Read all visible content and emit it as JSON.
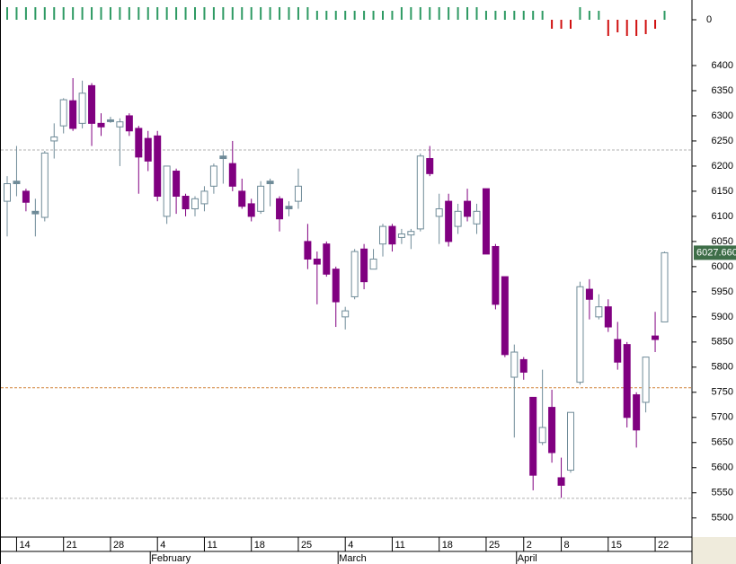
{
  "chart_data": [
    {
      "type": "bar",
      "values": [
        14,
        14,
        14,
        14,
        14,
        14,
        14,
        14,
        14,
        14,
        14,
        14,
        14,
        14,
        14,
        14,
        14,
        14,
        14,
        14,
        14,
        14,
        14,
        14,
        14,
        14,
        14,
        14,
        14,
        14,
        14,
        14,
        14,
        10,
        10,
        10,
        10,
        10,
        10,
        10,
        10,
        10,
        14,
        14,
        14,
        14,
        14,
        14,
        14,
        14,
        14,
        10,
        10,
        10,
        10,
        10,
        10,
        10,
        -10,
        -10,
        -10,
        14,
        10,
        10,
        -18,
        -14,
        -18,
        -18,
        -16,
        -10,
        10
      ],
      "ylim": [
        -20,
        17
      ],
      "yticks": [
        0
      ],
      "up_color": "#2e9a63",
      "down_color": "#d01010"
    },
    {
      "type": "candlestick",
      "categories": [
        null,
        "14",
        null,
        null,
        null,
        null,
        "21",
        null,
        null,
        null,
        null,
        "28",
        null,
        null,
        null,
        null,
        "4",
        null,
        null,
        null,
        null,
        "11",
        null,
        null,
        null,
        null,
        "18",
        null,
        null,
        null,
        null,
        "25",
        null,
        null,
        null,
        null,
        "4",
        null,
        null,
        null,
        null,
        "11",
        null,
        null,
        null,
        null,
        "18",
        null,
        null,
        null,
        null,
        "25",
        null,
        null,
        null,
        "2",
        null,
        null,
        null,
        "8",
        null,
        null,
        null,
        null,
        "15",
        null,
        null,
        null,
        null,
        "22",
        null
      ],
      "months": [
        null,
        null,
        null,
        null,
        null,
        null,
        null,
        null,
        null,
        null,
        null,
        null,
        null,
        null,
        null,
        null,
        "February",
        null,
        null,
        null,
        null,
        null,
        null,
        null,
        null,
        null,
        null,
        null,
        null,
        null,
        null,
        null,
        null,
        null,
        null,
        null,
        "March",
        null,
        null,
        null,
        null,
        null,
        null,
        null,
        null,
        null,
        null,
        null,
        null,
        null,
        null,
        null,
        null,
        null,
        null,
        "April",
        null,
        null,
        null,
        null,
        null,
        null,
        null,
        null,
        null,
        null,
        null,
        null,
        null,
        null,
        null
      ],
      "open": [
        6130,
        6165,
        6150,
        6110,
        6098,
        6250,
        6280,
        6330,
        6285,
        6360,
        6285,
        6292,
        6278,
        6300,
        6275,
        6255,
        6260,
        6100,
        6190,
        6140,
        6115,
        6125,
        6160,
        6215,
        6205,
        6150,
        6125,
        6110,
        6165,
        6135,
        6115,
        6130,
        6050,
        6015,
        6045,
        5995,
        5900,
        5940,
        6035,
        5995,
        6045,
        6080,
        6058,
        6063,
        6075,
        6215,
        6100,
        6130,
        6080,
        6130,
        6085,
        6155,
        6040,
        5980,
        5780,
        5815,
        5740,
        5650,
        5720,
        5580,
        5595,
        5770,
        5955,
        5900,
        5920,
        5855,
        5845,
        5745,
        5730,
        5862,
        5890
      ],
      "high": [
        6180,
        6240,
        6155,
        6135,
        6230,
        6285,
        6335,
        6375,
        6370,
        6365,
        6305,
        6298,
        6295,
        6305,
        6280,
        6270,
        6270,
        6200,
        6195,
        6145,
        6140,
        6160,
        6205,
        6230,
        6250,
        6175,
        6135,
        6170,
        6175,
        6140,
        6130,
        6195,
        6085,
        6030,
        6050,
        6000,
        5920,
        6035,
        6045,
        6035,
        6085,
        6085,
        6075,
        6075,
        6225,
        6240,
        6145,
        6145,
        6125,
        6155,
        6125,
        6155,
        6045,
        5980,
        5845,
        5820,
        5740,
        5795,
        5755,
        5620,
        5710,
        5970,
        5975,
        5945,
        5935,
        5890,
        5850,
        5750,
        5820,
        5910,
        6030
      ],
      "low": [
        6060,
        6140,
        6110,
        6060,
        6090,
        6215,
        6265,
        6270,
        6275,
        6240,
        6260,
        6286,
        6200,
        6260,
        6145,
        6190,
        6130,
        6085,
        6105,
        6100,
        6100,
        6110,
        6145,
        6165,
        6150,
        6115,
        6090,
        6105,
        6120,
        6070,
        6100,
        6115,
        5995,
        5925,
        5980,
        5880,
        5875,
        5935,
        5955,
        5995,
        6020,
        6030,
        6045,
        6035,
        6070,
        6180,
        6045,
        6040,
        6065,
        6090,
        6065,
        6025,
        5915,
        5820,
        5660,
        5775,
        5555,
        5645,
        5610,
        5540,
        5590,
        5765,
        5895,
        5895,
        5870,
        5795,
        5680,
        5640,
        5710,
        5830,
        5890
      ],
      "close": [
        6165,
        6170,
        6128,
        6105,
        6226,
        6258,
        6332,
        6275,
        6345,
        6285,
        6278,
        6290,
        6288,
        6270,
        6218,
        6210,
        6140,
        6200,
        6140,
        6115,
        6135,
        6150,
        6200,
        6220,
        6160,
        6120,
        6100,
        6160,
        6170,
        6095,
        6120,
        6160,
        6015,
        6005,
        5985,
        5930,
        5912,
        6030,
        5970,
        6015,
        6080,
        6045,
        6065,
        6070,
        6220,
        6185,
        6115,
        6050,
        6110,
        6100,
        6110,
        6025,
        5925,
        5825,
        5830,
        5790,
        5585,
        5680,
        5630,
        5565,
        5710,
        5960,
        5935,
        5920,
        5880,
        5810,
        5700,
        5675,
        5820,
        5855,
        6027.66
      ],
      "ylim": [
        5462,
        6450
      ],
      "yticks": [
        5500,
        5550,
        5600,
        5650,
        5700,
        5750,
        5800,
        5850,
        5900,
        5950,
        6000,
        6050,
        6100,
        6150,
        6200,
        6250,
        6300,
        6350,
        6400
      ],
      "reference_lines": [
        {
          "value": 6232,
          "color": "#b0b0b0"
        },
        {
          "value": 5759,
          "color": "#d2843c"
        },
        {
          "value": 5539,
          "color": "#b0b0b0"
        }
      ],
      "last_price": {
        "value": 6027.66,
        "label": "6027.660"
      },
      "up_color": "#6f8b98",
      "down_color": "#800080"
    }
  ]
}
